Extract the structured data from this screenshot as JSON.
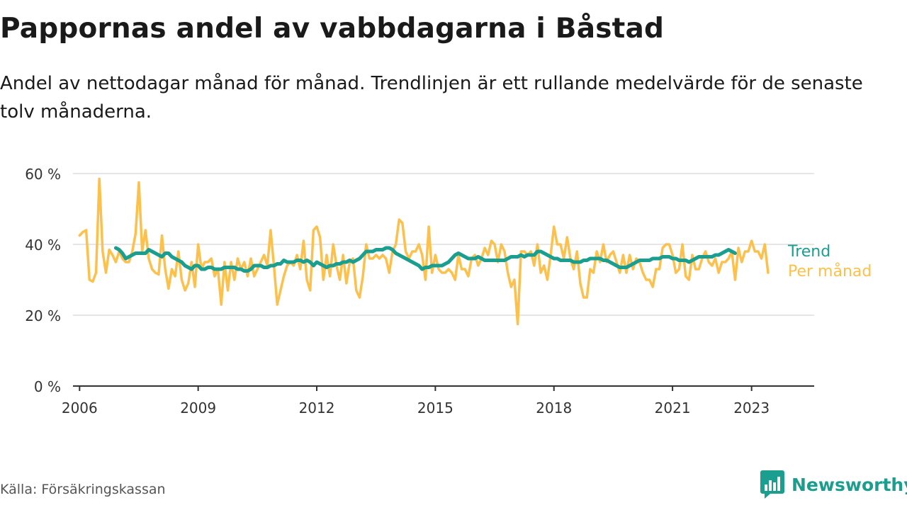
{
  "header": {
    "title": "Pappornas andel av vabbdagarna i Båstad",
    "subtitle": "Andel av nettodagar månad för månad. Trendlinjen är ett rullande medelvärde för de senaste tolv månaderna."
  },
  "footer": {
    "source": "Källa: Försäkringskassan",
    "logo_text": "Newsworthy"
  },
  "colors": {
    "monthly": "#fdc04a",
    "trend": "#1a9e8f",
    "grid": "#dddddd",
    "axis": "#333333",
    "logo": "#1a9e8f"
  },
  "chart_data": {
    "type": "line",
    "title": "Pappornas andel av vabbdagarna i Båstad",
    "xlabel": "",
    "ylabel": "",
    "xlim": [
      "2005-11",
      "2024-08"
    ],
    "ylim": [
      0,
      60
    ],
    "y_ticks": [
      {
        "value": 0,
        "label": "0 %"
      },
      {
        "value": 20,
        "label": "20 %"
      },
      {
        "value": 40,
        "label": "40 %"
      },
      {
        "value": 60,
        "label": "60 %"
      }
    ],
    "x_ticks": [
      {
        "value": "2006-01",
        "label": "2006"
      },
      {
        "value": "2009-01",
        "label": "2009"
      },
      {
        "value": "2012-01",
        "label": "2012"
      },
      {
        "value": "2015-01",
        "label": "2015"
      },
      {
        "value": "2018-01",
        "label": "2018"
      },
      {
        "value": "2021-01",
        "label": "2021"
      },
      {
        "value": "2023-01",
        "label": "2023"
      }
    ],
    "grid": true,
    "legend": "line-end labels, right",
    "series": [
      {
        "name": "Per månad",
        "color": "#fdc04a",
        "start": "2006-01",
        "values": [
          42.5,
          43.5,
          44,
          30,
          29.5,
          32,
          58.5,
          38,
          32,
          38.5,
          37,
          35,
          38,
          36,
          35,
          35,
          38,
          43,
          57.5,
          38,
          44,
          36,
          33,
          32,
          31.5,
          42.5,
          33,
          27.5,
          33,
          31,
          38,
          30,
          27,
          29,
          35,
          28,
          40,
          33,
          35,
          35,
          36,
          31,
          33,
          23,
          35,
          27,
          35,
          30,
          36,
          33,
          35,
          31,
          36,
          31,
          33,
          35,
          37,
          34,
          44,
          34,
          23,
          27,
          31,
          34,
          35,
          34,
          37,
          33,
          41,
          30,
          27,
          44,
          45,
          42,
          30,
          37,
          31,
          40,
          34,
          30,
          37,
          29,
          35,
          36,
          27,
          25,
          31,
          40,
          36,
          36,
          37,
          36,
          37,
          36,
          32,
          38,
          40,
          47,
          46,
          38,
          36,
          38,
          38,
          40,
          37,
          30,
          45,
          32,
          37,
          33,
          32,
          32,
          33,
          32,
          30,
          37,
          33,
          33,
          31,
          36,
          37,
          34,
          36,
          39,
          37,
          41,
          40,
          35,
          40,
          38,
          32,
          28,
          30,
          17.5,
          38,
          38,
          37,
          38,
          34,
          40,
          32,
          34,
          30,
          37,
          45,
          40,
          40,
          36,
          42,
          36,
          33,
          38,
          29,
          25,
          25,
          33,
          32,
          38,
          35,
          40,
          35,
          37,
          38,
          35,
          32,
          37,
          32,
          37,
          33,
          36,
          35,
          32,
          30,
          30,
          28,
          33,
          33,
          39,
          40,
          40,
          37,
          32,
          33,
          40,
          31,
          30,
          37,
          33,
          33,
          36,
          38,
          35,
          34,
          36,
          32,
          35,
          35,
          36,
          38,
          30,
          39,
          35,
          38,
          38,
          41,
          38,
          38,
          36,
          40,
          32
        ]
      },
      {
        "name": "Trend",
        "color": "#1a9e8f",
        "start": "2006-12",
        "values": [
          39,
          38.5,
          37.5,
          36,
          36.5,
          37,
          37.5,
          37.5,
          37.5,
          37.5,
          38.5,
          38,
          37.5,
          37,
          36.5,
          37.5,
          37.5,
          36.5,
          36,
          35.5,
          35,
          34,
          33.5,
          33,
          34,
          34,
          33,
          33,
          33.5,
          33.5,
          33,
          33,
          33,
          33.5,
          33.5,
          33.5,
          33.5,
          33,
          33,
          32.5,
          32.5,
          33,
          34,
          34,
          34,
          33.5,
          33.5,
          34,
          34,
          34.5,
          34.5,
          35.5,
          35,
          35,
          35,
          35.5,
          35.5,
          35,
          35.5,
          35,
          34,
          35,
          34.5,
          34,
          33.5,
          34,
          34,
          34.5,
          34.5,
          35,
          35,
          35.5,
          35,
          35.5,
          36,
          37,
          38,
          38,
          38,
          38.5,
          38.5,
          38.5,
          39,
          39,
          38.5,
          37.5,
          37,
          36.5,
          36,
          35.5,
          35,
          34.5,
          34,
          33,
          33.5,
          33.5,
          34,
          34,
          34,
          34,
          34.5,
          35,
          36,
          37,
          37.5,
          37,
          36.5,
          36,
          36,
          36,
          36.5,
          36,
          35.5,
          35.5,
          35.5,
          35.5,
          35.5,
          35.5,
          35.5,
          36,
          36.5,
          36.5,
          36.5,
          37,
          36.5,
          37,
          37,
          37,
          38,
          38,
          37.5,
          37,
          36.5,
          36,
          36,
          35.5,
          35.5,
          35.5,
          35.5,
          35,
          35,
          35,
          35.5,
          35.5,
          36,
          36,
          36,
          36,
          35.5,
          35.5,
          35,
          34.5,
          34,
          33.5,
          33.5,
          33.5,
          34,
          34.5,
          35,
          35.5,
          35.5,
          35.5,
          35.5,
          36,
          36,
          36,
          36.5,
          36.5,
          36.5,
          36,
          36,
          35.5,
          35.5,
          35.5,
          35,
          35.5,
          36,
          36.5,
          36.5,
          36.5,
          36.5,
          36.5,
          37,
          37,
          37.5,
          38,
          38.5,
          38,
          37.5
        ]
      }
    ]
  }
}
